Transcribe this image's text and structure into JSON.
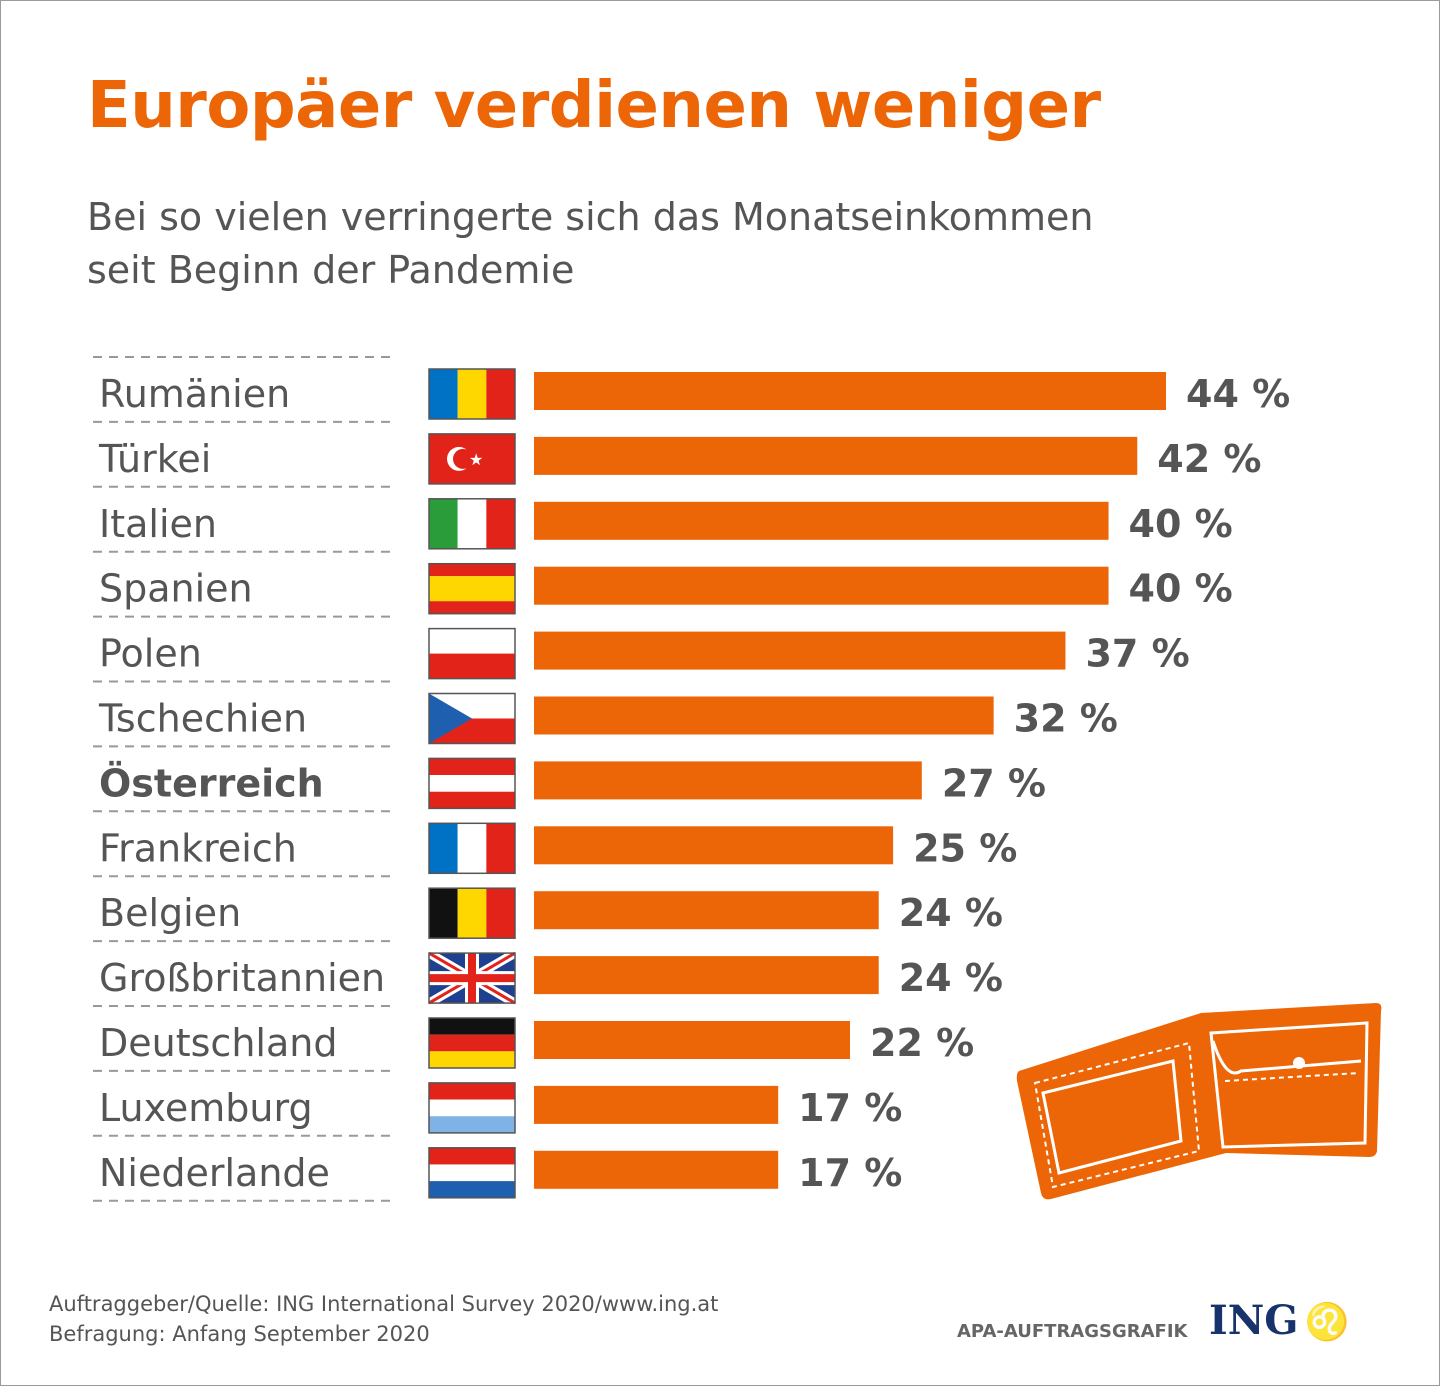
{
  "title": "Europäer verdienen weniger",
  "subtitle_line1": "Bei so vielen verringerte sich das Monatseinkommen",
  "subtitle_line2": "seit Beginn der Pandemie",
  "chart_data": {
    "type": "bar",
    "orientation": "horizontal",
    "title": "Europäer verdienen weniger",
    "categories": [
      "Rumänien",
      "Türkei",
      "Italien",
      "Spanien",
      "Polen",
      "Tschechien",
      "Österreich",
      "Frankreich",
      "Belgien",
      "Großbritannien",
      "Deutschland",
      "Luxemburg",
      "Niederlande"
    ],
    "values": [
      44,
      42,
      40,
      40,
      37,
      32,
      27,
      25,
      24,
      24,
      22,
      17,
      17
    ],
    "value_labels": [
      "44 %",
      "42 %",
      "40 %",
      "40 %",
      "37 %",
      "32 %",
      "27 %",
      "25 %",
      "24 %",
      "24 %",
      "22 %",
      "17 %",
      "17 %"
    ],
    "highlighted": "Österreich",
    "unit": "%",
    "xlim": [
      0,
      44
    ],
    "grid": false,
    "bar_color": "#ec6608",
    "flags": [
      "romania-flag-icon",
      "turkey-flag-icon",
      "italy-flag-icon",
      "spain-flag-icon",
      "poland-flag-icon",
      "czech-flag-icon",
      "austria-flag-icon",
      "france-flag-icon",
      "belgium-flag-icon",
      "uk-flag-icon",
      "germany-flag-icon",
      "luxembourg-flag-icon",
      "netherlands-flag-icon"
    ]
  },
  "footer": {
    "source": "Auftraggeber/Quelle: ING International Survey 2020/www.ing.at",
    "survey": "Befragung: Anfang September 2020",
    "agency": "APA-AUFTRAGSGRAFIK",
    "logo": "ING"
  },
  "decoration": "wallet-icon",
  "colors": {
    "accent": "#ec6608",
    "text": "#555555",
    "logo_blue": "#18336b"
  }
}
